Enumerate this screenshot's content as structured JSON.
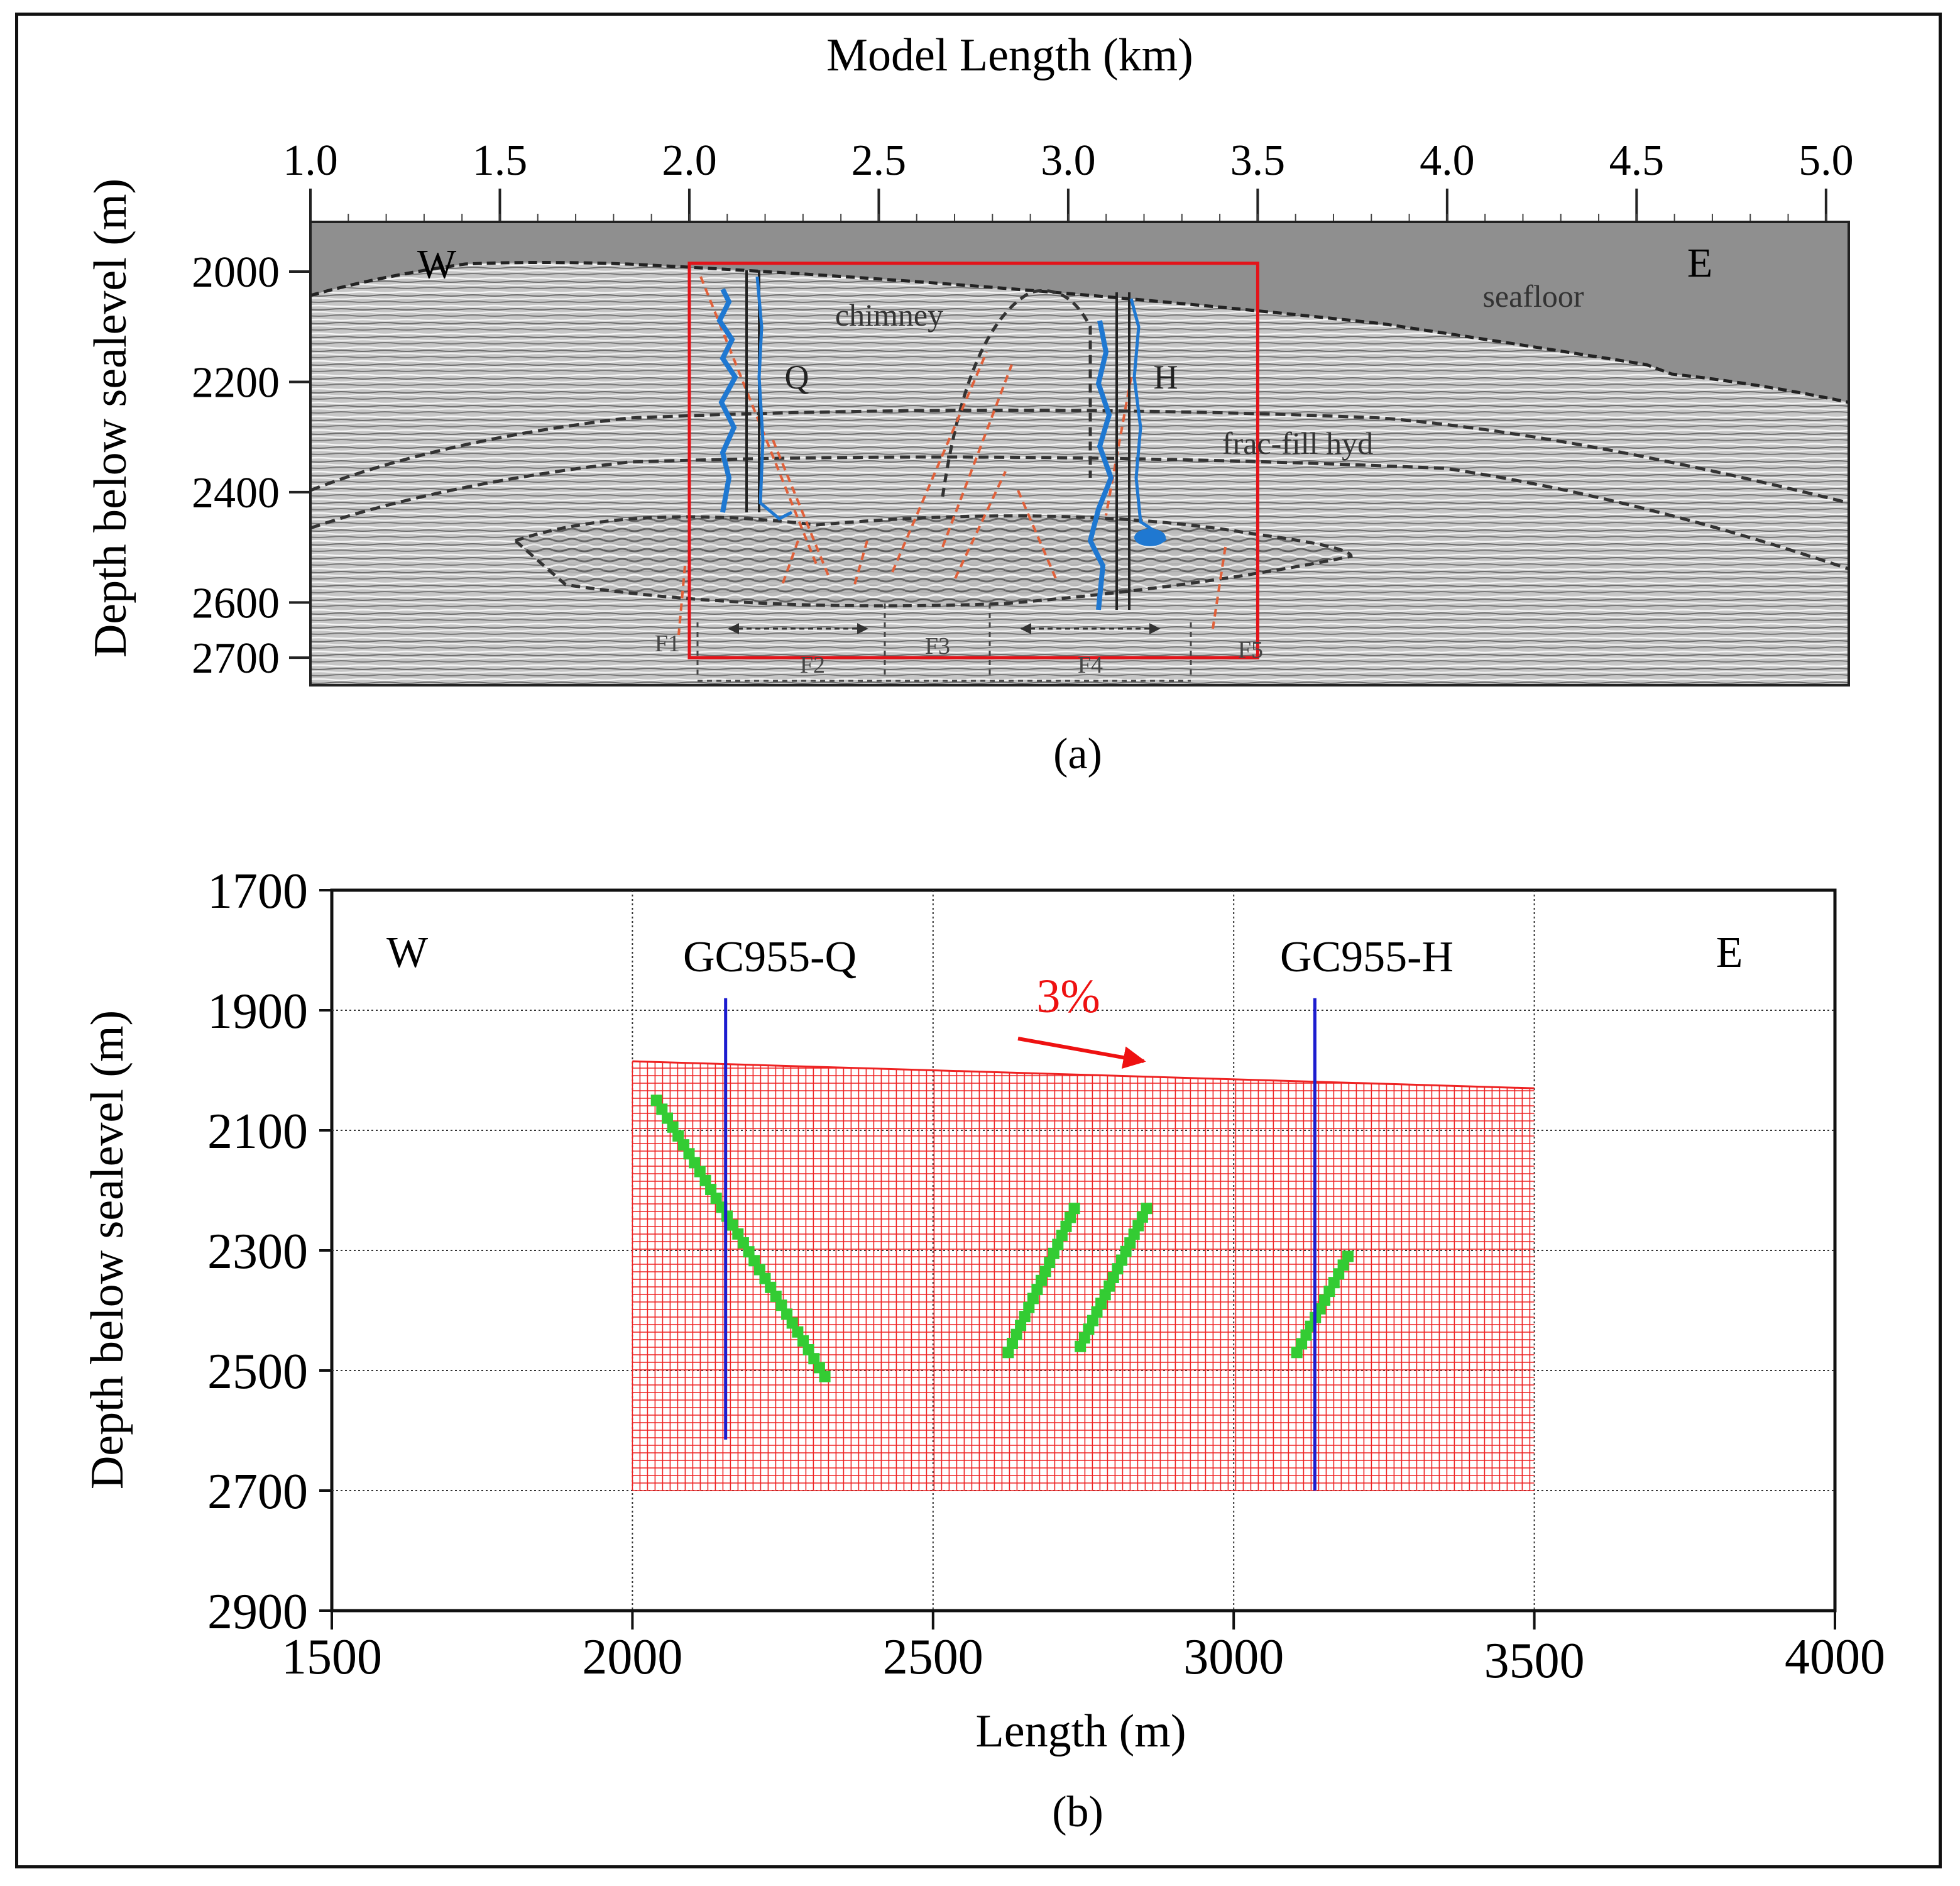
{
  "colors": {
    "frame": "#111111",
    "water": "#8f8f8f",
    "redbox": "#e3141a",
    "well": "#1f78d1",
    "fault": "#e0603a",
    "mesh": "#ee2222",
    "fracture": "#33cc33",
    "wellline": "#1c1ccf",
    "arrow": "#ee1111"
  },
  "chart_data": [
    {
      "type": "image",
      "panel_label": "(a)",
      "title": "Model Length (km)",
      "ylabel": "Depth below sealevel (m)",
      "x_ticks": [
        "1.0",
        "1.5",
        "2.0",
        "2.5",
        "3.0",
        "3.5",
        "4.0",
        "4.5",
        "5.0"
      ],
      "y_ticks": [
        "2000",
        "2200",
        "2400",
        "2600",
        "2700"
      ],
      "xlim": [
        1.0,
        5.06
      ],
      "ylim": [
        1910,
        2750
      ],
      "annotations": {
        "west": "W",
        "east": "E",
        "seafloor": "seafloor",
        "chimney": "chimney",
        "frac_fill": "frac-fill hyd",
        "well_q": "Q",
        "well_h": "H"
      },
      "fault_zones": [
        "F1",
        "F2",
        "F3",
        "F4",
        "F5"
      ],
      "red_box": {
        "x": [
          2.0,
          3.5
        ],
        "y": [
          1985,
          2700
        ]
      }
    },
    {
      "type": "grid-model",
      "panel_label": "(b)",
      "xlabel": "Length (m)",
      "ylabel": "Depth below sealevel (m)",
      "x_ticks": [
        "1500",
        "2000",
        "2500",
        "3000",
        "3500",
        "4000"
      ],
      "y_ticks": [
        "1700",
        "1900",
        "2100",
        "2300",
        "2500",
        "2700",
        "2900"
      ],
      "xlim": [
        1500,
        4000
      ],
      "ylim": [
        1700,
        2900
      ],
      "annotations": {
        "west": "W",
        "east": "E",
        "slope": "3%"
      },
      "wells": [
        {
          "name": "GC955-Q",
          "x": 2155,
          "top": 1880,
          "bottom": 2615
        },
        {
          "name": "GC955-H",
          "x": 3135,
          "top": 1880,
          "bottom": 2700
        }
      ],
      "mesh": {
        "x": [
          2000,
          3500
        ],
        "top_left": 1985,
        "top_right": 2030,
        "bottom": 2700
      },
      "fractures": [
        {
          "x": [
            2040,
            2320
          ],
          "depth": [
            2050,
            2510
          ]
        },
        {
          "x": [
            2625,
            2735
          ],
          "depth": [
            2470,
            2230
          ]
        },
        {
          "x": [
            2745,
            2855
          ],
          "depth": [
            2460,
            2230
          ]
        },
        {
          "x": [
            3105,
            3190
          ],
          "depth": [
            2470,
            2310
          ]
        }
      ]
    }
  ]
}
